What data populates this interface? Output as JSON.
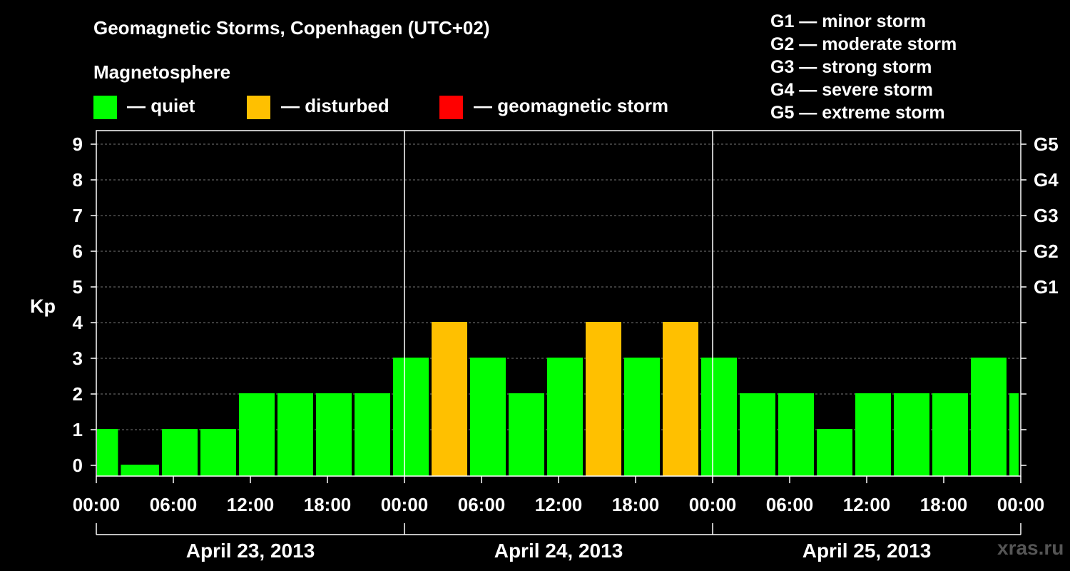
{
  "chart_data": {
    "type": "bar",
    "title": "Geomagnetic Storms, Copenhagen (UTC+02)",
    "ylabel": "Kp",
    "ylim": [
      0,
      9
    ],
    "y_ticks": [
      "0",
      "1",
      "2",
      "3",
      "4",
      "5",
      "6",
      "7",
      "8",
      "9"
    ],
    "right_ticks": [
      {
        "kp": 5,
        "label": "G1"
      },
      {
        "kp": 6,
        "label": "G2"
      },
      {
        "kp": 7,
        "label": "G3"
      },
      {
        "kp": 8,
        "label": "G4"
      },
      {
        "kp": 9,
        "label": "G5"
      }
    ],
    "x_unit": "hours from April 23, 2013 00:00",
    "xlim": [
      0,
      72
    ],
    "x_ticks": [
      {
        "hour": 0,
        "label": "00:00"
      },
      {
        "hour": 6,
        "label": "06:00"
      },
      {
        "hour": 12,
        "label": "12:00"
      },
      {
        "hour": 18,
        "label": "18:00"
      },
      {
        "hour": 24,
        "label": "00:00"
      },
      {
        "hour": 30,
        "label": "06:00"
      },
      {
        "hour": 36,
        "label": "12:00"
      },
      {
        "hour": 42,
        "label": "18:00"
      },
      {
        "hour": 48,
        "label": "00:00"
      },
      {
        "hour": 54,
        "label": "06:00"
      },
      {
        "hour": 60,
        "label": "12:00"
      },
      {
        "hour": 66,
        "label": "18:00"
      },
      {
        "hour": 72,
        "label": "00:00"
      }
    ],
    "days": [
      {
        "start": 0,
        "end": 24,
        "label": "April 23, 2013"
      },
      {
        "start": 24,
        "end": 48,
        "label": "April 24, 2013"
      },
      {
        "start": 48,
        "end": 72,
        "label": "April 25, 2013"
      }
    ],
    "bars": [
      {
        "start": 0,
        "end": 1.8,
        "kp": 1,
        "level": "quiet"
      },
      {
        "start": 1.8,
        "end": 5,
        "kp": 0,
        "level": "quiet"
      },
      {
        "start": 5,
        "end": 8,
        "kp": 1,
        "level": "quiet"
      },
      {
        "start": 8,
        "end": 11,
        "kp": 1,
        "level": "quiet"
      },
      {
        "start": 11,
        "end": 14,
        "kp": 2,
        "level": "quiet"
      },
      {
        "start": 14,
        "end": 17,
        "kp": 2,
        "level": "quiet"
      },
      {
        "start": 17,
        "end": 20,
        "kp": 2,
        "level": "quiet"
      },
      {
        "start": 20,
        "end": 23,
        "kp": 2,
        "level": "quiet"
      },
      {
        "start": 23,
        "end": 26,
        "kp": 3,
        "level": "quiet"
      },
      {
        "start": 26,
        "end": 29,
        "kp": 4,
        "level": "disturbed"
      },
      {
        "start": 29,
        "end": 32,
        "kp": 3,
        "level": "quiet"
      },
      {
        "start": 32,
        "end": 35,
        "kp": 2,
        "level": "quiet"
      },
      {
        "start": 35,
        "end": 38,
        "kp": 3,
        "level": "quiet"
      },
      {
        "start": 38,
        "end": 41,
        "kp": 4,
        "level": "disturbed"
      },
      {
        "start": 41,
        "end": 44,
        "kp": 3,
        "level": "quiet"
      },
      {
        "start": 44,
        "end": 47,
        "kp": 4,
        "level": "disturbed"
      },
      {
        "start": 47,
        "end": 50,
        "kp": 3,
        "level": "quiet"
      },
      {
        "start": 50,
        "end": 53,
        "kp": 2,
        "level": "quiet"
      },
      {
        "start": 53,
        "end": 56,
        "kp": 2,
        "level": "quiet"
      },
      {
        "start": 56,
        "end": 59,
        "kp": 1,
        "level": "quiet"
      },
      {
        "start": 59,
        "end": 62,
        "kp": 2,
        "level": "quiet"
      },
      {
        "start": 62,
        "end": 65,
        "kp": 2,
        "level": "quiet"
      },
      {
        "start": 65,
        "end": 68,
        "kp": 2,
        "level": "quiet"
      },
      {
        "start": 68,
        "end": 71,
        "kp": 3,
        "level": "quiet"
      },
      {
        "start": 71,
        "end": 72,
        "kp": 2,
        "level": "quiet"
      }
    ]
  },
  "magnetosphere_label": "Magnetosphere",
  "legend": [
    {
      "key": "quiet",
      "label": "— quiet",
      "color": "#00ff00"
    },
    {
      "key": "disturbed",
      "label": "— disturbed",
      "color": "#ffc000"
    },
    {
      "key": "storm",
      "label": "— geomagnetic storm",
      "color": "#ff0000"
    }
  ],
  "storm_levels": [
    "G1 — minor storm",
    "G2 — moderate storm",
    "G3 — strong storm",
    "G4 — severe storm",
    "G5 — extreme storm"
  ],
  "watermark": "xras.ru"
}
